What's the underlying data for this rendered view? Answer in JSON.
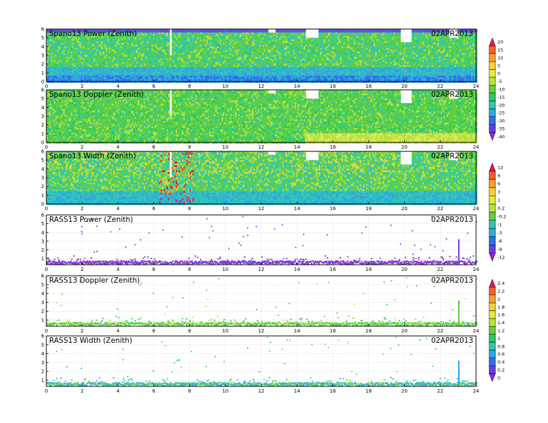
{
  "chart_data": [
    {
      "type": "heatmap",
      "title": "Spano13 Power (Zenith)",
      "date": "02APR2013",
      "x_ticks": [
        "0",
        "2",
        "4",
        "6",
        "8",
        "10",
        "12",
        "14",
        "16",
        "18",
        "20",
        "22",
        "24"
      ],
      "y_ticks": [
        "0",
        "1",
        "2",
        "3",
        "4",
        "5",
        "6"
      ],
      "xlim": [
        0,
        24
      ],
      "ylim": [
        0,
        6
      ],
      "grid": true,
      "colorbar": "A"
    },
    {
      "type": "heatmap",
      "title": "Spano13 Doppler (Zenith)",
      "date": "02APR2013",
      "x_ticks": [
        "0",
        "2",
        "4",
        "6",
        "8",
        "10",
        "12",
        "14",
        "16",
        "18",
        "20",
        "22",
        "24"
      ],
      "y_ticks": [
        "0",
        "1",
        "2",
        "3",
        "4",
        "5",
        "6"
      ],
      "xlim": [
        0,
        24
      ],
      "ylim": [
        0,
        6
      ],
      "grid": true,
      "colorbar": null
    },
    {
      "type": "heatmap",
      "title": "Spano13 Width (Zenith)",
      "date": "02APR2013",
      "x_ticks": [
        "0",
        "2",
        "4",
        "6",
        "8",
        "10",
        "12",
        "14",
        "16",
        "18",
        "20",
        "22",
        "24"
      ],
      "y_ticks": [
        "0",
        "1",
        "2",
        "3",
        "4",
        "5",
        "6"
      ],
      "xlim": [
        0,
        24
      ],
      "ylim": [
        0,
        6
      ],
      "grid": true,
      "colorbar": "B"
    },
    {
      "type": "scatter",
      "title": "RASS13 Power (Zenith)",
      "date": "02APR2013",
      "x_ticks": [
        "0",
        "2",
        "4",
        "6",
        "8",
        "10",
        "12",
        "14",
        "16",
        "18",
        "20",
        "22",
        "24"
      ],
      "y_ticks": [
        "1",
        "2",
        "3",
        "4",
        "5",
        "6"
      ],
      "xlim": [
        0,
        24
      ],
      "ylim": [
        0.3,
        6
      ],
      "grid": true,
      "colorbar": null
    },
    {
      "type": "scatter",
      "title": "RASS13 Doppler (Zenith)",
      "date": "02APR2013",
      "x_ticks": [
        "0",
        "2",
        "4",
        "6",
        "8",
        "10",
        "12",
        "14",
        "16",
        "18",
        "20",
        "22",
        "24"
      ],
      "y_ticks": [
        "1",
        "2",
        "3",
        "4",
        "5",
        "6"
      ],
      "xlim": [
        0,
        24
      ],
      "ylim": [
        0.3,
        6
      ],
      "grid": true,
      "colorbar": "C"
    },
    {
      "type": "scatter",
      "title": "RASS13 Width (Zenith)",
      "date": "02APR2013",
      "x_ticks": [
        "0",
        "2",
        "4",
        "6",
        "8",
        "10",
        "12",
        "14",
        "16",
        "18",
        "20",
        "22",
        "24"
      ],
      "y_ticks": [
        "1",
        "2",
        "3",
        "4",
        "5",
        "6"
      ],
      "xlim": [
        0,
        24
      ],
      "ylim": [
        0.3,
        6
      ],
      "grid": true,
      "colorbar": null
    }
  ],
  "colorbars": {
    "A": {
      "labels": [
        "20",
        "15",
        "10",
        "5",
        "0",
        "-5",
        "-10",
        "-15",
        "-20",
        "-25",
        "-30",
        "-35",
        "-40"
      ],
      "colors": [
        "#e8174c",
        "#f06030",
        "#f5a030",
        "#f7d040",
        "#e9ea40",
        "#b8e040",
        "#60d040",
        "#30c860",
        "#30c8b0",
        "#30a8e0",
        "#3070e8",
        "#6040e0",
        "#a020d8"
      ]
    },
    "B": {
      "labels": [
        "12",
        "9",
        "6",
        "3",
        "1",
        "0.2",
        "-0.2",
        "-1",
        "-3",
        "-6",
        "-9",
        "-12"
      ],
      "colors": [
        "#e8174c",
        "#f06030",
        "#f5a030",
        "#f7d040",
        "#e9ea40",
        "#b8e040",
        "#60d040",
        "#30c8b0",
        "#30a8e0",
        "#3070e8",
        "#6040e0",
        "#a020d8"
      ]
    },
    "C": {
      "labels": [
        "2.4",
        "2.2",
        "2",
        "1.8",
        "1.6",
        "1.4",
        "1.2",
        "1",
        "0.8",
        "0.6",
        "0.4",
        "0.2",
        "0"
      ],
      "colors": [
        "#e8174c",
        "#f06030",
        "#f5a030",
        "#f7d040",
        "#e9ea40",
        "#b8e040",
        "#60d040",
        "#30c860",
        "#30c8b0",
        "#30a8e0",
        "#3070e8",
        "#6040e0",
        "#a020d8"
      ]
    }
  }
}
